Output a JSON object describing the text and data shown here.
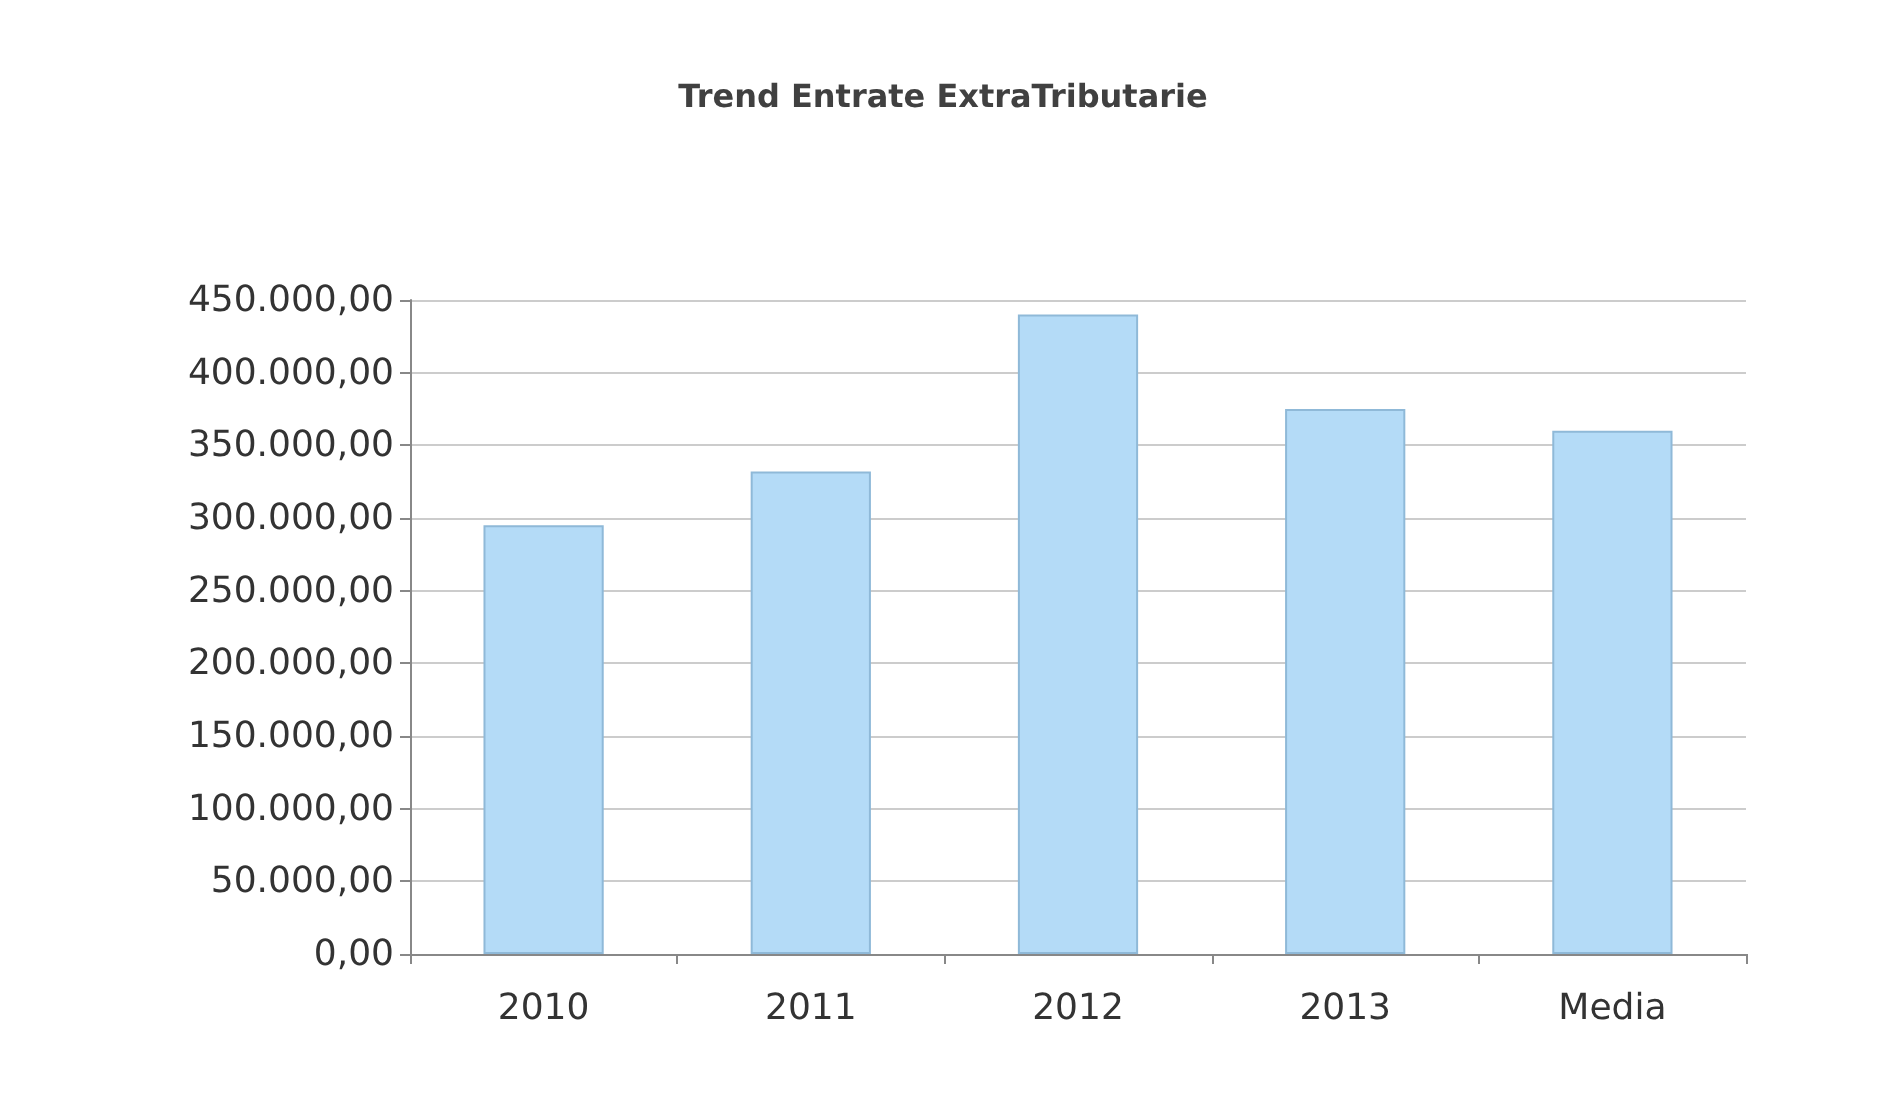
{
  "chart_data": {
    "type": "bar",
    "title": "Trend Entrate ExtraTributarie",
    "categories": [
      "2010",
      "2011",
      "2012",
      "2013",
      "Media"
    ],
    "values": [
      295000,
      332000,
      440000,
      375000,
      360000
    ],
    "color": "#b4dbf7",
    "ylim": [
      0,
      450000
    ],
    "yticks": [
      {
        "value": 0,
        "label": "0,00"
      },
      {
        "value": 50000,
        "label": "50.000,00"
      },
      {
        "value": 100000,
        "label": "100.000,00"
      },
      {
        "value": 150000,
        "label": "150.000,00"
      },
      {
        "value": 200000,
        "label": "200.000,00"
      },
      {
        "value": 250000,
        "label": "250.000,00"
      },
      {
        "value": 300000,
        "label": "300.000,00"
      },
      {
        "value": 350000,
        "label": "350.000,00"
      },
      {
        "value": 400000,
        "label": "400.000,00"
      },
      {
        "value": 450000,
        "label": "450.000,00"
      }
    ],
    "grid": true
  }
}
